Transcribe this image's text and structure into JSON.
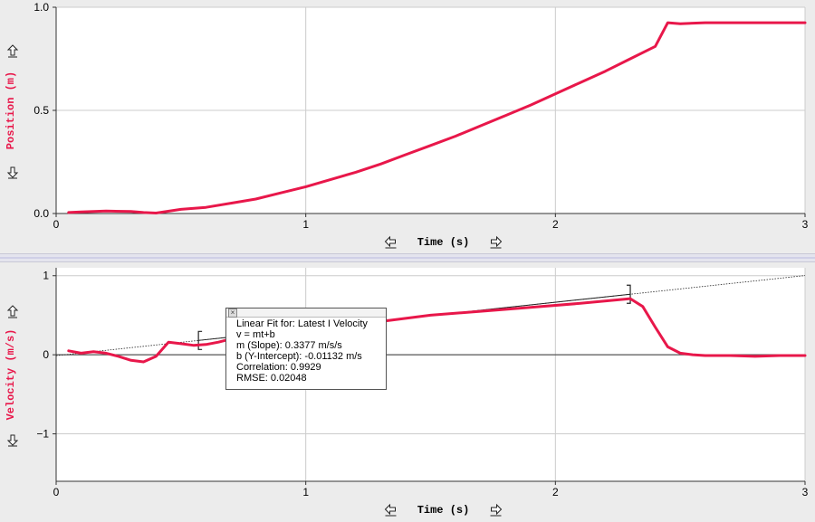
{
  "colors": {
    "series": "#e8174a",
    "grid": "#cccccc",
    "axis": "#333333",
    "plot_bg": "#ffffff",
    "panel_bg": "#ececec",
    "label": "#e8174a"
  },
  "icons": {
    "scroll_up": "up-arrow-icon",
    "scroll_down": "down-arrow-icon",
    "scroll_left": "left-arrow-icon",
    "scroll_right": "right-arrow-icon"
  },
  "chart_data": [
    {
      "type": "line",
      "xlabel": "Time (s)",
      "ylabel": "Position (m)",
      "xlim": [
        0,
        3
      ],
      "ylim": [
        0,
        1.0
      ],
      "xticks": [
        0,
        1,
        2,
        3
      ],
      "yticks": [
        0.0,
        0.5,
        1.0
      ],
      "xtick_labels": [
        "0",
        "1",
        "2",
        "3"
      ],
      "ytick_labels": [
        "0.0",
        "0.5",
        "1.0"
      ],
      "grid": true,
      "series": [
        {
          "x": [
            0.05,
            0.1,
            0.2,
            0.3,
            0.35,
            0.4,
            0.5,
            0.6,
            0.7,
            0.8,
            0.9,
            1.0,
            1.1,
            1.2,
            1.3,
            1.4,
            1.5,
            1.6,
            1.7,
            1.8,
            1.9,
            2.0,
            2.1,
            2.2,
            2.3,
            2.4,
            2.45,
            2.5,
            2.6,
            2.7,
            2.8,
            2.9,
            3.0
          ],
          "values": [
            0.005,
            0.008,
            0.012,
            0.01,
            0.005,
            0.002,
            0.02,
            0.03,
            0.05,
            0.07,
            0.1,
            0.13,
            0.165,
            0.2,
            0.24,
            0.285,
            0.33,
            0.375,
            0.425,
            0.475,
            0.525,
            0.58,
            0.635,
            0.69,
            0.75,
            0.81,
            0.925,
            0.92,
            0.925,
            0.925,
            0.925,
            0.925,
            0.925
          ]
        }
      ]
    },
    {
      "type": "line",
      "xlabel": "Time (s)",
      "ylabel": "Velocity (m/s)",
      "xlim": [
        0,
        3
      ],
      "ylim": [
        -1.6,
        1.1
      ],
      "xticks": [
        0,
        1,
        2,
        3
      ],
      "yticks": [
        -1,
        0,
        1
      ],
      "xtick_labels": [
        "0",
        "1",
        "2",
        "3"
      ],
      "ytick_labels": [
        "−1",
        "0",
        "1"
      ],
      "grid": true,
      "series": [
        {
          "x": [
            0.05,
            0.1,
            0.15,
            0.2,
            0.25,
            0.3,
            0.35,
            0.4,
            0.45,
            0.5,
            0.55,
            0.6,
            0.65,
            0.7,
            0.9,
            1.1,
            1.3,
            1.5,
            1.7,
            1.9,
            2.1,
            2.3,
            2.35,
            2.4,
            2.45,
            2.5,
            2.55,
            2.6,
            2.7,
            2.8,
            2.9,
            3.0
          ],
          "values": [
            0.05,
            0.02,
            0.04,
            0.02,
            -0.02,
            -0.07,
            -0.09,
            -0.02,
            0.16,
            0.14,
            0.12,
            0.13,
            0.16,
            0.2,
            0.3,
            0.37,
            0.42,
            0.5,
            0.55,
            0.6,
            0.65,
            0.71,
            0.61,
            0.35,
            0.1,
            0.02,
            0.0,
            -0.01,
            -0.01,
            -0.02,
            -0.01,
            -0.01
          ]
        }
      ],
      "fit": {
        "slope": 0.3377,
        "intercept": -0.01132,
        "x_range": [
          0.0,
          3.0
        ],
        "bracket_x": [
          0.57,
          2.3
        ]
      }
    }
  ],
  "fit_panel": {
    "title": "Linear Fit for:  Latest I Velocity",
    "equation": "v = mt+b",
    "slope": "m (Slope): 0.3377 m/s/s",
    "intercept": "b (Y-Intercept): -0.01132 m/s",
    "correlation": "Correlation: 0.9929",
    "rmse": "RMSE: 0.02048",
    "close_label": "×"
  }
}
